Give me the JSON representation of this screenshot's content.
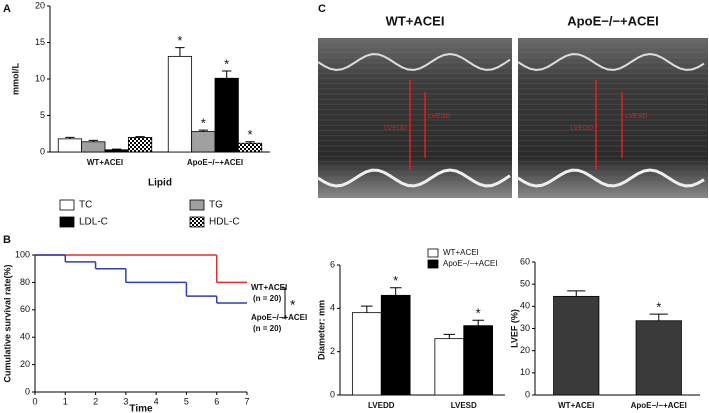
{
  "chart_data": [
    {
      "type": "bar",
      "panel": "A",
      "ylabel": "mmol/L",
      "xlabel": "Lipid",
      "categories": [
        "WT+ACEI",
        "ApoE−/−+ACEI"
      ],
      "series": [
        {
          "name": "TC",
          "color": "#ffffff",
          "values": [
            1.8,
            13.1
          ],
          "errors": [
            0.2,
            1.2
          ],
          "labels": [
            null,
            "*"
          ]
        },
        {
          "name": "TG",
          "color": "#a0a0a0",
          "values": [
            1.4,
            2.8
          ],
          "errors": [
            0.2,
            0.2
          ],
          "labels": [
            null,
            "*"
          ]
        },
        {
          "name": "LDL-C",
          "color": "#000000",
          "values": [
            0.3,
            10.1
          ],
          "errors": [
            0.1,
            1.0
          ],
          "labels": [
            null,
            "*"
          ]
        },
        {
          "name": "HDL-C",
          "color": "#000000",
          "pattern": "checker",
          "values": [
            2.0,
            1.2
          ],
          "errors": [
            0.1,
            0.2
          ],
          "labels": [
            null,
            "*"
          ]
        }
      ],
      "ylim": [
        0,
        20
      ],
      "yticks": [
        0,
        5,
        10,
        15,
        20
      ],
      "legend": "below"
    },
    {
      "type": "step",
      "panel": "B",
      "ylabel": "Cumulative survival rate(%)",
      "xlabel": "Time",
      "series": [
        {
          "name": "WT+ACEI",
          "n": "(n = 20)",
          "color": "#e03030",
          "x": [
            0,
            6,
            7
          ],
          "values": [
            100,
            80,
            80
          ]
        },
        {
          "name": "ApoE−/−+ACEI",
          "n": "(n = 20)",
          "color": "#2d3fb0",
          "x": [
            0,
            1,
            2,
            3,
            5,
            6,
            7
          ],
          "values": [
            100,
            95,
            90,
            80,
            70,
            65,
            65
          ]
        }
      ],
      "annotation": "*",
      "xlim": [
        0,
        7
      ],
      "xticks": [
        0,
        1,
        2,
        3,
        4,
        5,
        6,
        7
      ],
      "ylim": [
        0,
        100
      ],
      "yticks": [
        0,
        20,
        40,
        60,
        80,
        100
      ]
    },
    {
      "type": "bar",
      "ylabel": "Diameter: mm",
      "categories": [
        "LVEDD",
        "LVESD"
      ],
      "series": [
        {
          "name": "WT+ACEI",
          "color": "#ffffff",
          "values": [
            3.8,
            2.6
          ],
          "errors": [
            0.3,
            0.2
          ],
          "labels": [
            null,
            null
          ]
        },
        {
          "name": "ApoE−/−+ACEI",
          "color": "#000000",
          "values": [
            4.6,
            3.2
          ],
          "errors": [
            0.35,
            0.25
          ],
          "labels": [
            "*",
            "*"
          ]
        }
      ],
      "ylim": [
        0,
        6
      ],
      "yticks": [
        0,
        2,
        4,
        6
      ],
      "legend": "top-left"
    },
    {
      "type": "bar",
      "ylabel": "LVEF (%)",
      "categories": [
        "WT+ACEI",
        "ApoE−/−+ACEI"
      ],
      "values": [
        44.5,
        33.5
      ],
      "errors": [
        2.5,
        3.0
      ],
      "labels": [
        null,
        "*"
      ],
      "color": "#3a3a3a",
      "ylim": [
        0,
        60
      ],
      "yticks": [
        0,
        10,
        20,
        30,
        40,
        50,
        60
      ]
    }
  ],
  "echo_images": {
    "panel": "C",
    "images": [
      {
        "title": "WT+ACEI",
        "labels": [
          "LVEDD",
          "LVESD"
        ]
      },
      {
        "title": "ApoE−/−+ACEI",
        "labels": [
          "LVEDD",
          "LVESD"
        ]
      }
    ]
  }
}
